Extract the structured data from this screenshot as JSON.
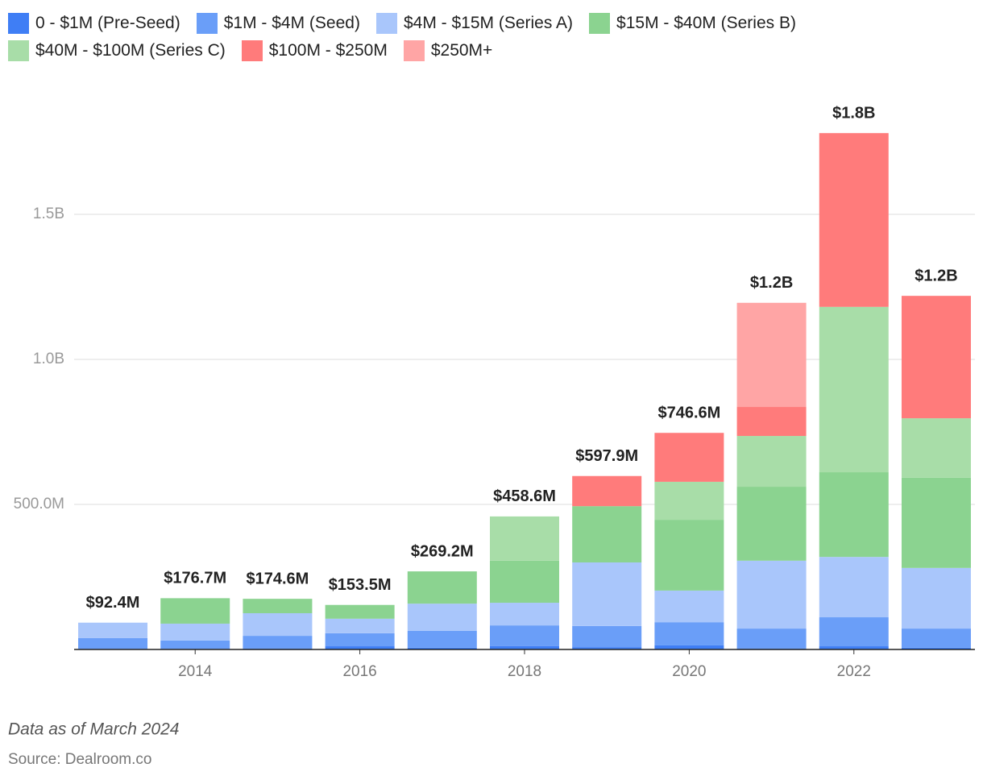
{
  "chart_data": {
    "type": "stacked-bar",
    "x": [
      2013,
      2014,
      2015,
      2016,
      2017,
      2018,
      2019,
      2020,
      2021,
      2022,
      2023
    ],
    "xlim": [
      2012.53,
      2023.47
    ],
    "xticks": [
      2014,
      2016,
      2018,
      2020,
      2022
    ],
    "ylim": [
      0,
      1950
    ],
    "yticks": [
      {
        "value": 500,
        "label": "500.0M"
      },
      {
        "value": 1000,
        "label": "1.0B"
      },
      {
        "value": 1500,
        "label": "1.5B"
      }
    ],
    "grid": true,
    "series": [
      {
        "name": "0 - $1M (Pre-Seed)",
        "color": "#3f7ef5",
        "values": [
          2,
          2,
          3,
          11,
          6,
          12,
          8,
          14,
          3,
          11,
          6
        ]
      },
      {
        "name": "$1M - $4M (Seed)",
        "color": "#6a9ef8",
        "values": [
          37,
          29,
          44,
          45,
          58,
          71,
          73,
          80,
          69,
          100,
          66
        ]
      },
      {
        "name": "$4M - $15M (Series A)",
        "color": "#a9c6fb",
        "values": [
          53.4,
          58,
          78,
          50,
          94,
          78,
          219,
          109,
          234,
          208,
          209
        ]
      },
      {
        "name": "$15M - $40M (Series B)",
        "color": "#8bd390",
        "values": [
          null,
          87.7,
          49.6,
          47.5,
          111.2,
          145,
          194,
          244,
          255,
          292,
          311
        ]
      },
      {
        "name": "$40M - $100M (Series C)",
        "color": "#a8dda8",
        "values": [
          null,
          null,
          null,
          null,
          null,
          152.6,
          null,
          131,
          175,
          570,
          205
        ]
      },
      {
        "name": "$100M - $250M",
        "color": "#ff7b7b",
        "values": [
          null,
          null,
          null,
          null,
          null,
          null,
          103.9,
          168.6,
          100,
          599,
          422
        ]
      },
      {
        "name": "$250M+",
        "color": "#ffa5a5",
        "values": [
          null,
          null,
          null,
          null,
          null,
          null,
          null,
          null,
          359,
          null,
          null
        ]
      }
    ],
    "totals": {
      "values": [
        92.4,
        176.7,
        174.6,
        153.5,
        269.2,
        458.6,
        597.9,
        746.6,
        1195,
        1780,
        1219
      ],
      "value_labels": [
        "$92.4M",
        "$176.7M",
        "$174.6M",
        "$153.5M",
        "$269.2M",
        "$458.6M",
        "$597.9M",
        "$746.6M",
        "$1.2B",
        "$1.8B",
        "$1.2B"
      ]
    },
    "notes": [
      "Data as of March 2024",
      "Source: Dealroom.co"
    ]
  }
}
